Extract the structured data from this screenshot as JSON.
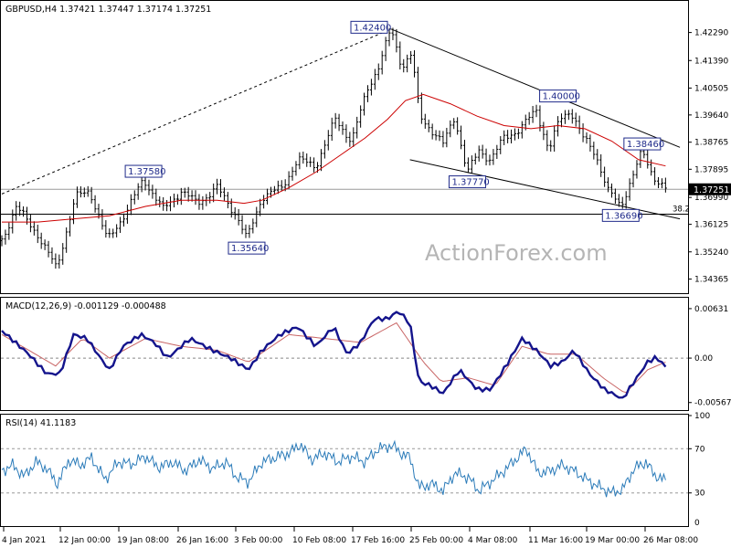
{
  "header": {
    "symbol_info": "GBPUSD,H4  1.37421 1.37447 1.37174 1.37251"
  },
  "watermark": "ActionForex.com",
  "colors": {
    "candle": "#000000",
    "ma": "#cc0000",
    "macd": "#14148c",
    "signal": "#c86464",
    "rsi": "#2b7bb9",
    "level_box": "#1f2a8a",
    "trend": "#000000",
    "frame": "#000000"
  },
  "chart_data": [
    {
      "type": "candlestick",
      "panel": "price",
      "title": "GBPUSD,H4  1.37421 1.37447 1.37174 1.37251",
      "ylim": [
        1.34,
        1.431
      ],
      "y_ticks": [
        "1.42290",
        "1.41390",
        "1.40505",
        "1.39640",
        "1.38765",
        "1.37895",
        "1.36990",
        "1.36125",
        "1.35240",
        "1.34365"
      ],
      "x_ticks": [
        "4 Jan 2021",
        "12 Jan 00:00",
        "19 Jan 08:00",
        "26 Jan 16:00",
        "3 Feb 00:00",
        "10 Feb 08:00",
        "17 Feb 16:00",
        "25 Feb 00:00",
        "4 Mar 08:00",
        "11 Mar 16:00",
        "19 Mar 00:00",
        "26 Mar 08:00"
      ],
      "current_price_label": "1.37251",
      "current_price": 1.37251,
      "fib_label": "38.2",
      "fib_level": 1.3645,
      "levels": [
        {
          "label": "1.42400",
          "bar": 434,
          "price": 1.424
        },
        {
          "label": "1.37580",
          "bar": 158,
          "price": 1.3758
        },
        {
          "label": "1.35640",
          "bar": 273,
          "price": 1.3564
        },
        {
          "label": "1.37770",
          "bar": 519,
          "price": 1.3777
        },
        {
          "label": "1.40000",
          "bar": 620,
          "price": 1.4
        },
        {
          "label": "1.38460",
          "bar": 714,
          "price": 1.3846
        },
        {
          "label": "1.36690",
          "bar": 690,
          "price": 1.3669
        }
      ],
      "swing_points": [
        [
          0,
          1.356
        ],
        [
          16,
          1.367
        ],
        [
          40,
          1.358
        ],
        [
          61,
          1.347
        ],
        [
          82,
          1.37
        ],
        [
          98,
          1.372
        ],
        [
          118,
          1.356
        ],
        [
          140,
          1.366
        ],
        [
          158,
          1.3758
        ],
        [
          180,
          1.366
        ],
        [
          200,
          1.372
        ],
        [
          218,
          1.368
        ],
        [
          240,
          1.373
        ],
        [
          262,
          1.364
        ],
        [
          273,
          1.3564
        ],
        [
          290,
          1.37
        ],
        [
          312,
          1.373
        ],
        [
          330,
          1.382
        ],
        [
          350,
          1.38
        ],
        [
          372,
          1.395
        ],
        [
          390,
          1.388
        ],
        [
          408,
          1.405
        ],
        [
          420,
          1.412
        ],
        [
          434,
          1.424
        ],
        [
          446,
          1.412
        ],
        [
          457,
          1.416
        ],
        [
          466,
          1.396
        ],
        [
          478,
          1.392
        ],
        [
          492,
          1.387
        ],
        [
          505,
          1.396
        ],
        [
          519,
          1.3777
        ],
        [
          532,
          1.385
        ],
        [
          545,
          1.382
        ],
        [
          560,
          1.389
        ],
        [
          578,
          1.392
        ],
        [
          596,
          1.398
        ],
        [
          610,
          1.385
        ],
        [
          622,
          1.395
        ],
        [
          634,
          1.398
        ],
        [
          648,
          1.389
        ],
        [
          662,
          1.384
        ],
        [
          676,
          1.372
        ],
        [
          690,
          1.3669
        ],
        [
          702,
          1.376
        ],
        [
          714,
          1.3846
        ],
        [
          726,
          1.377
        ],
        [
          740,
          1.37251
        ]
      ],
      "ma_points": [
        [
          0,
          1.362
        ],
        [
          40,
          1.362
        ],
        [
          80,
          1.363
        ],
        [
          120,
          1.364
        ],
        [
          160,
          1.367
        ],
        [
          200,
          1.369
        ],
        [
          240,
          1.369
        ],
        [
          270,
          1.368
        ],
        [
          290,
          1.369
        ],
        [
          320,
          1.373
        ],
        [
          350,
          1.378
        ],
        [
          380,
          1.384
        ],
        [
          405,
          1.389
        ],
        [
          430,
          1.395
        ],
        [
          450,
          1.401
        ],
        [
          470,
          1.403
        ],
        [
          500,
          1.4
        ],
        [
          530,
          1.396
        ],
        [
          560,
          1.393
        ],
        [
          590,
          1.392
        ],
        [
          620,
          1.393
        ],
        [
          650,
          1.392
        ],
        [
          680,
          1.388
        ],
        [
          710,
          1.382
        ],
        [
          740,
          1.38
        ]
      ],
      "trend_lines": [
        {
          "style": "dotted",
          "from": [
            0,
            1.371
          ],
          "to": [
            434,
            1.424
          ]
        },
        {
          "style": "solid",
          "from": [
            434,
            1.424
          ],
          "to": [
            756,
            1.386
          ]
        },
        {
          "style": "solid",
          "from": [
            455,
            1.382
          ],
          "to": [
            756,
            1.363
          ]
        }
      ],
      "horizontal_lines": [
        {
          "price": 1.37251
        },
        {
          "price": 1.3645
        }
      ]
    },
    {
      "type": "line",
      "panel": "macd",
      "title": "MACD(12,26,9) -0.001129 -0.000488",
      "ylim": [
        -0.0064,
        0.007
      ],
      "y_ticks": [
        "0.00631",
        "0.00",
        "-0.005671"
      ],
      "zero_label": "0.00",
      "macd_points": [
        [
          0,
          0.0035
        ],
        [
          15,
          0.002
        ],
        [
          30,
          0.0005
        ],
        [
          50,
          -0.002
        ],
        [
          65,
          -0.002
        ],
        [
          80,
          0.003
        ],
        [
          95,
          0.0025
        ],
        [
          110,
          0.0
        ],
        [
          120,
          -0.0015
        ],
        [
          135,
          0.0015
        ],
        [
          155,
          0.003
        ],
        [
          170,
          0.002
        ],
        [
          185,
          0.0
        ],
        [
          210,
          0.0025
        ],
        [
          235,
          0.001
        ],
        [
          255,
          0.0
        ],
        [
          275,
          -0.0015
        ],
        [
          290,
          0.001
        ],
        [
          310,
          0.003
        ],
        [
          330,
          0.004
        ],
        [
          350,
          0.0015
        ],
        [
          370,
          0.004
        ],
        [
          385,
          0.0005
        ],
        [
          400,
          0.002
        ],
        [
          415,
          0.005
        ],
        [
          430,
          0.005
        ],
        [
          442,
          0.006
        ],
        [
          455,
          0.0045
        ],
        [
          465,
          -0.003
        ],
        [
          478,
          -0.0035
        ],
        [
          492,
          -0.0045
        ],
        [
          510,
          -0.0015
        ],
        [
          530,
          -0.004
        ],
        [
          545,
          -0.004
        ],
        [
          562,
          -0.001
        ],
        [
          580,
          0.0025
        ],
        [
          596,
          0.001
        ],
        [
          612,
          -0.001
        ],
        [
          625,
          -0.0005
        ],
        [
          638,
          0.001
        ],
        [
          655,
          -0.002
        ],
        [
          672,
          -0.004
        ],
        [
          692,
          -0.0052
        ],
        [
          705,
          -0.003
        ],
        [
          720,
          -0.0005
        ],
        [
          730,
          0.0001
        ],
        [
          740,
          -0.0011
        ]
      ],
      "signal_points": [
        [
          0,
          0.003
        ],
        [
          30,
          0.001
        ],
        [
          60,
          -0.001
        ],
        [
          90,
          0.0025
        ],
        [
          120,
          0.0
        ],
        [
          160,
          0.0025
        ],
        [
          200,
          0.0015
        ],
        [
          240,
          0.001
        ],
        [
          275,
          -0.0005
        ],
        [
          320,
          0.003
        ],
        [
          360,
          0.0025
        ],
        [
          400,
          0.002
        ],
        [
          440,
          0.0045
        ],
        [
          470,
          -0.0005
        ],
        [
          490,
          -0.003
        ],
        [
          520,
          -0.0025
        ],
        [
          550,
          -0.0035
        ],
        [
          580,
          0.0015
        ],
        [
          610,
          0.0005
        ],
        [
          640,
          0.0005
        ],
        [
          670,
          -0.0025
        ],
        [
          695,
          -0.0045
        ],
        [
          720,
          -0.0015
        ],
        [
          740,
          -0.0005
        ]
      ]
    },
    {
      "type": "line",
      "panel": "rsi",
      "title": "RSI(14) 41.1183",
      "ylim": [
        0,
        100
      ],
      "y_ticks": [
        "100",
        "70",
        "30",
        "0"
      ],
      "guide_levels": [
        70,
        30
      ],
      "rsi_points": [
        [
          0,
          50
        ],
        [
          12,
          55
        ],
        [
          25,
          45
        ],
        [
          38,
          58
        ],
        [
          50,
          52
        ],
        [
          62,
          38
        ],
        [
          75,
          60
        ],
        [
          88,
          55
        ],
        [
          100,
          62
        ],
        [
          115,
          42
        ],
        [
          130,
          58
        ],
        [
          145,
          56
        ],
        [
          160,
          63
        ],
        [
          175,
          53
        ],
        [
          190,
          58
        ],
        [
          205,
          50
        ],
        [
          220,
          60
        ],
        [
          235,
          52
        ],
        [
          250,
          58
        ],
        [
          262,
          44
        ],
        [
          275,
          40
        ],
        [
          290,
          58
        ],
        [
          305,
          62
        ],
        [
          320,
          66
        ],
        [
          333,
          74
        ],
        [
          345,
          60
        ],
        [
          360,
          66
        ],
        [
          375,
          58
        ],
        [
          390,
          63
        ],
        [
          405,
          58
        ],
        [
          420,
          70
        ],
        [
          435,
          73
        ],
        [
          445,
          66
        ],
        [
          455,
          62
        ],
        [
          465,
          35
        ],
        [
          480,
          38
        ],
        [
          492,
          32
        ],
        [
          505,
          48
        ],
        [
          520,
          44
        ],
        [
          532,
          32
        ],
        [
          545,
          40
        ],
        [
          560,
          50
        ],
        [
          575,
          62
        ],
        [
          585,
          70
        ],
        [
          598,
          48
        ],
        [
          612,
          50
        ],
        [
          625,
          55
        ],
        [
          638,
          50
        ],
        [
          652,
          42
        ],
        [
          665,
          36
        ],
        [
          680,
          30
        ],
        [
          692,
          33
        ],
        [
          705,
          52
        ],
        [
          718,
          58
        ],
        [
          728,
          46
        ],
        [
          740,
          41
        ]
      ]
    }
  ]
}
